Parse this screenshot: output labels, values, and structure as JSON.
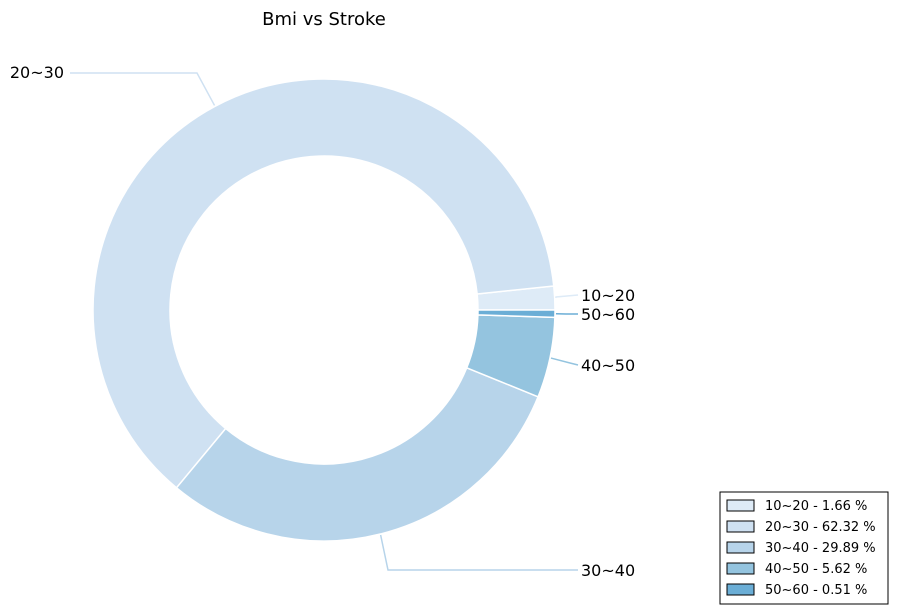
{
  "chart_data": {
    "type": "pie",
    "variant": "donut",
    "title": "Bmi vs Stroke",
    "categories": [
      "10~20",
      "20~30",
      "30~40",
      "40~50",
      "50~60"
    ],
    "values": [
      1.66,
      62.32,
      29.89,
      5.62,
      0.51
    ],
    "colors": [
      "#deebf7",
      "#cfe1f2",
      "#b7d4ea",
      "#94c4df",
      "#6baed6"
    ],
    "legend": {
      "position": "bottom-right",
      "entries": [
        "10~20 - 1.66 %",
        "20~30 - 62.32 %",
        "30~40 - 29.89 %",
        "40~50 - 5.62 %",
        "50~60 - 0.51 %"
      ]
    }
  }
}
